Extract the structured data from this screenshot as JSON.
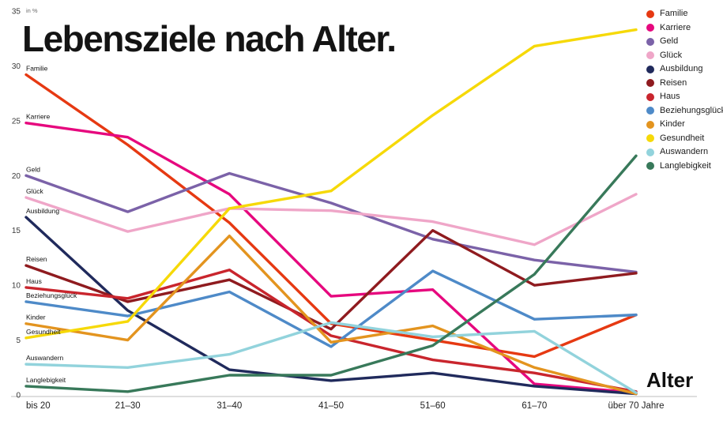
{
  "title": "Lebensziele nach Alter.",
  "y_axis_unit": "in %",
  "x_axis_title": "Alter",
  "chart_data": {
    "type": "line",
    "title": "Lebensziele nach Alter.",
    "xlabel": "Alter",
    "ylabel": "in %",
    "ylim": [
      0,
      35
    ],
    "yticks": [
      0,
      5,
      10,
      15,
      20,
      25,
      30,
      35
    ],
    "grid": false,
    "legend_position": "top-right",
    "categories": [
      "bis 20",
      "21–30",
      "31–40",
      "41–50",
      "51–60",
      "61–70",
      "über 70 Jahre"
    ],
    "series": [
      {
        "name": "Familie",
        "color": "#e63912",
        "values": [
          29.2,
          22.8,
          15.7,
          6.5,
          5.0,
          3.5,
          7.3
        ]
      },
      {
        "name": "Karriere",
        "color": "#e6087e",
        "values": [
          24.8,
          23.5,
          18.3,
          9.0,
          9.6,
          1.0,
          0.2
        ]
      },
      {
        "name": "Geld",
        "color": "#7b62a8",
        "values": [
          20.0,
          16.7,
          20.2,
          17.5,
          14.2,
          12.3,
          11.2
        ]
      },
      {
        "name": "Glück",
        "color": "#efa6c8",
        "values": [
          18.0,
          14.9,
          17.0,
          16.8,
          15.8,
          13.7,
          18.3
        ]
      },
      {
        "name": "Ausbildung",
        "color": "#202a5c",
        "values": [
          16.2,
          7.7,
          2.3,
          1.3,
          2.0,
          0.8,
          0.1
        ]
      },
      {
        "name": "Reisen",
        "color": "#8f1b1f",
        "values": [
          11.8,
          8.5,
          10.5,
          6.0,
          15.0,
          10.0,
          11.1
        ]
      },
      {
        "name": "Haus",
        "color": "#c9252d",
        "values": [
          9.8,
          8.8,
          11.4,
          5.4,
          3.2,
          2.0,
          0.3
        ]
      },
      {
        "name": "Beziehungsglück",
        "color": "#4e8ac8",
        "values": [
          8.5,
          7.2,
          9.4,
          4.4,
          11.3,
          6.9,
          7.3
        ]
      },
      {
        "name": "Kinder",
        "color": "#e3941f",
        "values": [
          6.5,
          5.0,
          14.5,
          4.8,
          6.3,
          2.5,
          0.1
        ]
      },
      {
        "name": "Gesundheit",
        "color": "#f6d908",
        "values": [
          5.2,
          6.7,
          17.0,
          18.6,
          25.5,
          31.8,
          33.3
        ]
      },
      {
        "name": "Auswandern",
        "color": "#92d3dc",
        "values": [
          2.8,
          2.5,
          3.7,
          6.6,
          5.3,
          5.8,
          0.2
        ]
      },
      {
        "name": "Langlebigkeit",
        "color": "#38795a",
        "values": [
          0.8,
          0.3,
          1.8,
          1.8,
          4.5,
          11.0,
          21.8
        ]
      }
    ]
  }
}
